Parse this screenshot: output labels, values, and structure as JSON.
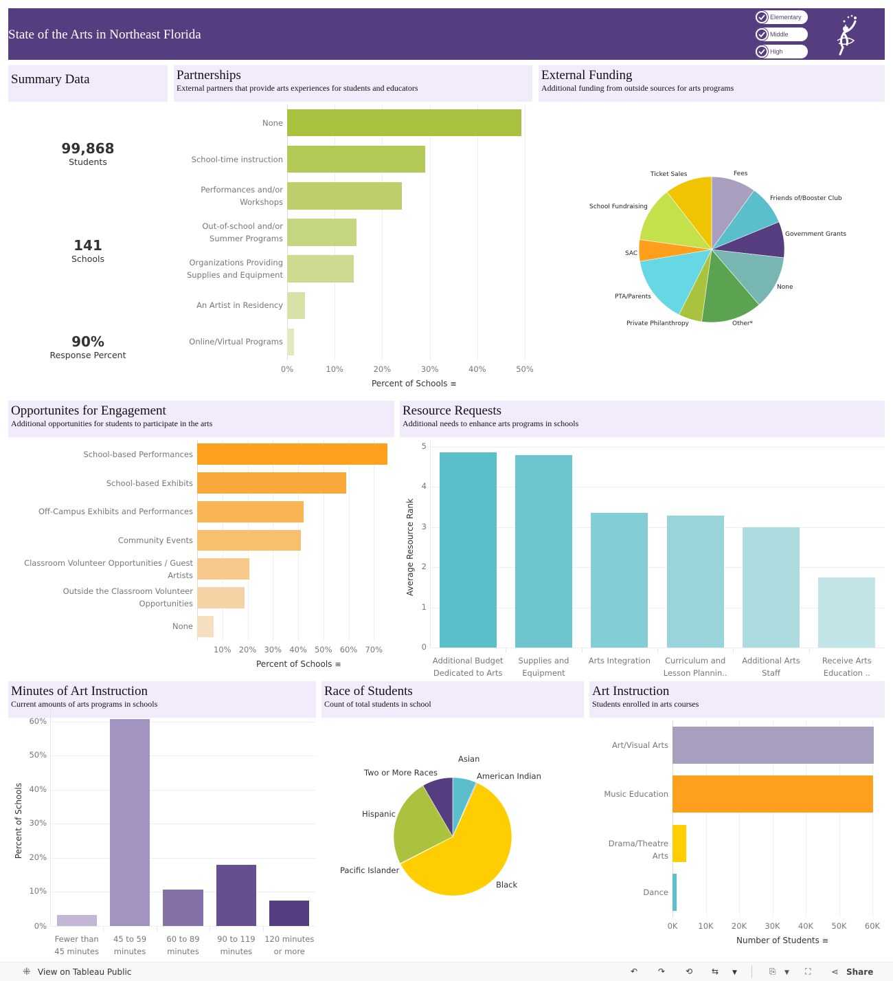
{
  "header": {
    "title": "State of the Arts in Northeast Florida",
    "filters": [
      {
        "label": "Elementary",
        "checked": true
      },
      {
        "label": "Middle",
        "checked": true
      },
      {
        "label": "High",
        "checked": true
      }
    ],
    "logo_icon": "dancer-with-stars-logo"
  },
  "summary": {
    "title": "Summary Data",
    "kpis": [
      {
        "value": "99,868",
        "label": "Students"
      },
      {
        "value": "141",
        "label": "Schools"
      },
      {
        "value": "90%",
        "label": "Response Percent"
      }
    ]
  },
  "partnerships": {
    "title": "Partnerships",
    "subtitle": "External partners that provide arts experiences for students and educators"
  },
  "external_funding": {
    "title": "External Funding",
    "subtitle": "Additional funding from outside sources for arts programs"
  },
  "engagement": {
    "title": "Opportunites for Engagement",
    "subtitle": "Additional opportunities for students to participate in the arts"
  },
  "resources": {
    "title": "Resource Requests",
    "subtitle": "Additional needs to enhance arts programs in schools"
  },
  "minutes": {
    "title": "Minutes of Art Instruction",
    "subtitle": "Current amounts of arts programs in schools"
  },
  "race": {
    "title": "Race of Students",
    "subtitle": "Count of total students in school"
  },
  "art_instruction": {
    "title": "Art Instruction",
    "subtitle": "Students enrolled in arts courses"
  },
  "chart_data": [
    {
      "id": "partnerships",
      "type": "bar",
      "orientation": "horizontal",
      "categories": [
        "None",
        "School-time instruction",
        "Performances and/or Workshops",
        "Out-of-school and/or Summer Programs",
        "Organizations Providing Supplies and Equipment",
        "An Artist in Residency",
        "Online/Virtual Programs"
      ],
      "category_lines": [
        [
          "None"
        ],
        [
          "School-time instruction"
        ],
        [
          "Performances and/or",
          "Workshops"
        ],
        [
          "Out-of-school and/or",
          "Summer Programs"
        ],
        [
          "Organizations Providing",
          "Supplies and Equipment"
        ],
        [
          "An Artist in Residency"
        ],
        [
          "Online/Virtual Programs"
        ]
      ],
      "values": [
        49.3,
        29.0,
        24.1,
        14.6,
        14.0,
        3.8,
        1.4
      ],
      "colors": [
        "#a8c23f",
        "#b3c955",
        "#bccf6a",
        "#c5d680",
        "#ccdb8f",
        "#d6e2a8",
        "#e0e9bf"
      ],
      "xlabel": "Percent of Schools",
      "xlim": [
        0,
        50
      ],
      "xticks": [
        "0%",
        "10%",
        "20%",
        "30%",
        "40%",
        "50%"
      ],
      "grid": true
    },
    {
      "id": "external_funding",
      "type": "pie",
      "slices": [
        {
          "label": "Fees",
          "value": 9.9,
          "color": "#a79fbd"
        },
        {
          "label": "Friends of/Booster Club",
          "value": 8.9,
          "color": "#5bbfcb"
        },
        {
          "label": "Government Grants",
          "value": 8.0,
          "color": "#563d7f"
        },
        {
          "label": "None",
          "value": 11.9,
          "color": "#78b6b1"
        },
        {
          "label": "Other*",
          "value": 13.5,
          "color": "#5ba350"
        },
        {
          "label": "Private Philanthropy",
          "value": 5.2,
          "color": "#abc23f"
        },
        {
          "label": "PTA/Parents",
          "value": 15.0,
          "color": "#66d8e3"
        },
        {
          "label": "SAC",
          "value": 4.8,
          "color": "#ff9f1e"
        },
        {
          "label": "School Fundraising",
          "value": 12.3,
          "color": "#c4e04a"
        },
        {
          "label": "Ticket Sales",
          "value": 10.5,
          "color": "#f0c400"
        }
      ]
    },
    {
      "id": "engagement",
      "type": "bar",
      "orientation": "horizontal",
      "categories": [
        "School-based Performances",
        "School-based Exhibits",
        "Off-Campus Exhibits and Performances",
        "Community Events",
        "Classroom Volunteer Opportunities / Guest Artists",
        "Outside the Classroom Volunteer Opportunities",
        "None"
      ],
      "category_lines": [
        [
          "School-based Performances"
        ],
        [
          "School-based Exhibits"
        ],
        [
          "Off-Campus Exhibits and Performances"
        ],
        [
          "Community Events"
        ],
        [
          "Classroom Volunteer Opportunities / Guest",
          "Artists"
        ],
        [
          "Outside the Classroom Volunteer",
          "Opportunities"
        ],
        [
          "None"
        ]
      ],
      "values": [
        75.4,
        59.1,
        42.1,
        41.0,
        20.8,
        18.7,
        6.4
      ],
      "colors": [
        "#ff9f1e",
        "#fba83a",
        "#f9b553",
        "#f8bf6d",
        "#f7c98a",
        "#f6d3a4",
        "#f5dfc0"
      ],
      "xlabel": "Percent of Schools",
      "xlim": [
        0,
        77
      ],
      "xticks": [
        "10%",
        "20%",
        "30%",
        "40%",
        "50%",
        "60%",
        "70%"
      ],
      "grid": true
    },
    {
      "id": "resources",
      "type": "bar",
      "orientation": "vertical",
      "categories": [
        "Additional Budget Dedicated to Arts",
        "Supplies and Equipment",
        "Arts Integration",
        "Curriculum and Lesson Plannin..",
        "Additional Arts Staff",
        "Receive Arts Education .."
      ],
      "category_lines": [
        [
          "Additional Budget",
          "Dedicated to Arts"
        ],
        [
          "Supplies and",
          "Equipment"
        ],
        [
          "Arts Integration"
        ],
        [
          "Curriculum and",
          "Lesson Plannin.."
        ],
        [
          "Additional Arts",
          "Staff"
        ],
        [
          "Receive Arts",
          "Education .."
        ]
      ],
      "values": [
        4.86,
        4.79,
        3.35,
        3.28,
        2.99,
        1.74
      ],
      "colors": [
        "#5bbfcb",
        "#6fc5cf",
        "#83cdd5",
        "#98d4da",
        "#acdce0",
        "#c1e4e7"
      ],
      "ylabel": "Average Resource Rank",
      "ylim": [
        0,
        5
      ],
      "yticks": [
        "0",
        "1",
        "2",
        "3",
        "4",
        "5"
      ],
      "grid": true
    },
    {
      "id": "minutes",
      "type": "bar",
      "orientation": "vertical",
      "categories": [
        "Fewer than 45 minutes",
        "45 to 59 minutes",
        "60 to 89 minutes",
        "90 to 119 minutes",
        "120 minutes or more"
      ],
      "category_lines": [
        [
          "Fewer than",
          "45 minutes"
        ],
        [
          "45 to 59",
          "minutes"
        ],
        [
          "60 to 89",
          "minutes"
        ],
        [
          "90 to 119",
          "minutes"
        ],
        [
          "120 minutes",
          "or more"
        ]
      ],
      "values": [
        3.2,
        60.8,
        10.7,
        18.0,
        7.5
      ],
      "colors": [
        "#c3b5d6",
        "#a393c1",
        "#8670a8",
        "#674e8e",
        "#563d7f"
      ],
      "ylabel": "Percent of Schools",
      "ylim": [
        0,
        62
      ],
      "yticks": [
        "0%",
        "10%",
        "20%",
        "30%",
        "40%",
        "50%",
        "60%"
      ],
      "grid": true
    },
    {
      "id": "race",
      "type": "pie",
      "slices": [
        {
          "label": "Asian",
          "value": 6.5,
          "color": "#5bbfcb"
        },
        {
          "label": "American Indian",
          "value": 0.3,
          "color": "#a79fbd"
        },
        {
          "label": "Black",
          "value": 60.5,
          "color": "#ffce00"
        },
        {
          "label": "Pacific Islander",
          "value": 0.2,
          "color": "#f0c400"
        },
        {
          "label": "Hispanic",
          "value": 24.1,
          "color": "#abc23f"
        },
        {
          "label": "Two or More Races",
          "value": 8.4,
          "color": "#563d7f"
        }
      ]
    },
    {
      "id": "art_instruction",
      "type": "bar",
      "orientation": "horizontal",
      "categories": [
        "Art/Visual Arts",
        "Music Education",
        "Drama/Theatre Arts",
        "Dance"
      ],
      "values": [
        60500,
        60300,
        4100,
        1200
      ],
      "colors": [
        "#a79fbd",
        "#ff9f1e",
        "#ffce00",
        "#5bbfcb"
      ],
      "xlabel": "Number of Students",
      "xlim": [
        0,
        60000
      ],
      "xticks": [
        "0K",
        "10K",
        "20K",
        "30K",
        "40K",
        "50K",
        "60K"
      ],
      "grid": true
    }
  ],
  "footer": {
    "tableau_link": "View on Tableau Public",
    "share_label": "Share",
    "toolbar_icons": [
      "undo-icon",
      "redo-icon",
      "revert-icon",
      "refresh-icon",
      "download-icon",
      "fullscreen-icon",
      "share-icon"
    ]
  }
}
